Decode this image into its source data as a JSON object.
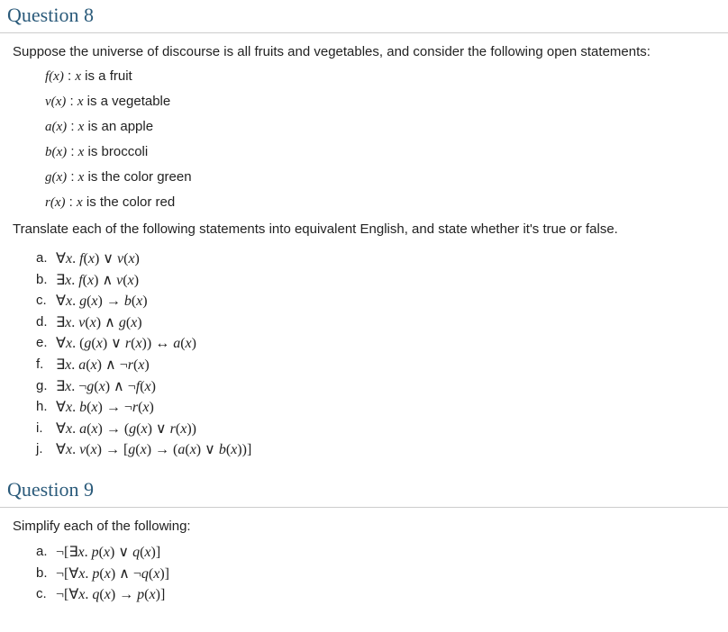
{
  "q8": {
    "title": "Question 8",
    "intro": "Suppose the universe of discourse is all fruits and vegetables, and consider the following open statements:",
    "defs": [
      {
        "fn": "f(x)",
        "txt": " is a fruit"
      },
      {
        "fn": "v(x)",
        "txt": " is a vegetable"
      },
      {
        "fn": "a(x)",
        "txt": " is an apple"
      },
      {
        "fn": "b(x)",
        "txt": " is broccoli"
      },
      {
        "fn": "g(x)",
        "txt": " is the color green"
      },
      {
        "fn": "r(x)",
        "txt": " is the color red"
      }
    ],
    "instruction": "Translate each of the following statements into equivalent English, and state whether it's true or false.",
    "items": [
      {
        "label": "a.",
        "formula": "∀<i>x</i>. <i>f</i>(<i>x</i>) ∨ <i>v</i>(<i>x</i>)"
      },
      {
        "label": "b.",
        "formula": "∃<i>x</i>. <i>f</i>(<i>x</i>) ∧ <i>v</i>(<i>x</i>)"
      },
      {
        "label": "c.",
        "formula": "∀<i>x</i>. <i>g</i>(<i>x</i>) → <i>b</i>(<i>x</i>)"
      },
      {
        "label": "d.",
        "formula": "∃<i>x</i>. <i>v</i>(<i>x</i>) ∧ <i>g</i>(<i>x</i>)"
      },
      {
        "label": "e.",
        "formula": "∀<i>x</i>. (<i>g</i>(<i>x</i>) ∨ <i>r</i>(<i>x</i>)) ↔ <i>a</i>(<i>x</i>)"
      },
      {
        "label": "f.",
        "formula": "∃<i>x</i>. <i>a</i>(<i>x</i>) ∧ ¬<i>r</i>(<i>x</i>)"
      },
      {
        "label": "g.",
        "formula": "∃<i>x</i>. ¬<i>g</i>(<i>x</i>) ∧ ¬<i>f</i>(<i>x</i>)"
      },
      {
        "label": "h.",
        "formula": "∀<i>x</i>. <i>b</i>(<i>x</i>) → ¬<i>r</i>(<i>x</i>)"
      },
      {
        "label": "i.",
        "formula": "∀<i>x</i>. <i>a</i>(<i>x</i>) → (<i>g</i>(<i>x</i>) ∨ <i>r</i>(<i>x</i>))"
      },
      {
        "label": "j.",
        "formula": "∀<i>x</i>. <i>v</i>(<i>x</i>) → [<i>g</i>(<i>x</i>) → (<i>a</i>(<i>x</i>) ∨ <i>b</i>(<i>x</i>))]"
      }
    ]
  },
  "q9": {
    "title": "Question 9",
    "intro": "Simplify each of the following:",
    "items": [
      {
        "label": "a.",
        "formula": "¬[∃<i>x</i>. <i>p</i>(<i>x</i>) ∨ <i>q</i>(<i>x</i>)]"
      },
      {
        "label": "b.",
        "formula": "¬[∀<i>x</i>. <i>p</i>(<i>x</i>) ∧ ¬<i>q</i>(<i>x</i>)]"
      },
      {
        "label": "c.",
        "formula": "¬[∀<i>x</i>. <i>q</i>(<i>x</i>) → <i>p</i>(<i>x</i>)]"
      }
    ]
  },
  "colors": {
    "heading": "#2a5a7a",
    "rule": "#cccccc",
    "text": "#222222",
    "background": "#ffffff"
  },
  "typography": {
    "body_font": "Arial",
    "body_size_pt": 11,
    "heading_font": "Georgia",
    "heading_size_pt": 17,
    "math_font": "Cambria Math"
  }
}
